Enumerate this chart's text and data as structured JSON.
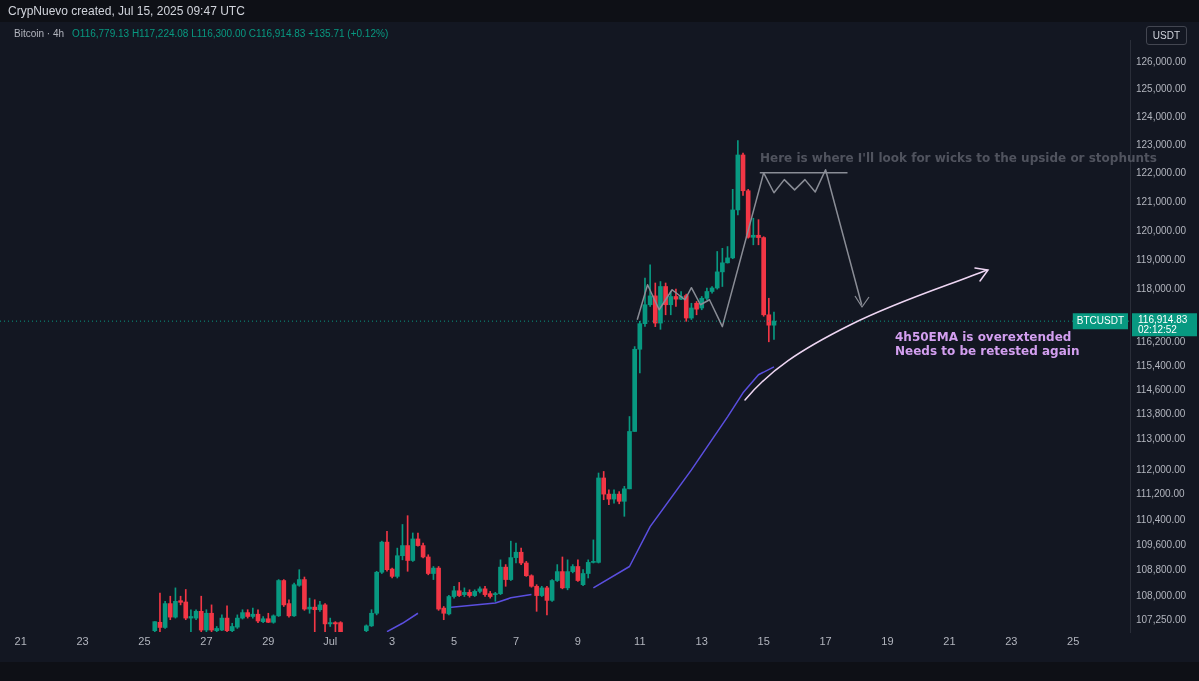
{
  "chart_data": {
    "type": "candlestick",
    "title": "Bitcoin · 4h",
    "subtitle": "O116,779.13 H117,224.08 L116,300.00 C116,914.83 +135.71 (+0.12%)",
    "ylabel": "USDT",
    "x": [
      "2025-06-25T08:00",
      "2025-06-25T12:00",
      "2025-06-25T16:00",
      "2025-06-25T20:00",
      "2025-06-26T00:00",
      "2025-06-26T04:00",
      "2025-06-26T08:00",
      "2025-06-26T12:00",
      "2025-06-26T16:00",
      "2025-06-26T20:00",
      "2025-06-27T00:00",
      "2025-06-27T04:00",
      "2025-06-27T08:00",
      "2025-06-27T12:00",
      "2025-06-27T16:00",
      "2025-06-27T20:00",
      "2025-06-28T00:00",
      "2025-06-28T04:00",
      "2025-06-28T08:00",
      "2025-06-28T12:00",
      "2025-06-28T16:00",
      "2025-06-28T20:00",
      "2025-06-29T00:00",
      "2025-06-29T04:00",
      "2025-06-29T08:00",
      "2025-06-29T12:00",
      "2025-06-29T16:00",
      "2025-06-29T20:00",
      "2025-06-30T00:00",
      "2025-06-30T04:00",
      "2025-06-30T08:00",
      "2025-06-30T12:00",
      "2025-06-30T16:00",
      "2025-06-30T20:00",
      "2025-07-01T00:00",
      "2025-07-01T04:00",
      "2025-07-01T08:00",
      "2025-07-02T04:00",
      "2025-07-02T08:00",
      "2025-07-02T12:00",
      "2025-07-02T16:00",
      "2025-07-02T20:00",
      "2025-07-03T00:00",
      "2025-07-03T04:00",
      "2025-07-03T08:00",
      "2025-07-03T12:00",
      "2025-07-03T16:00",
      "2025-07-03T20:00",
      "2025-07-04T00:00",
      "2025-07-04T04:00",
      "2025-07-04T08:00",
      "2025-07-04T12:00",
      "2025-07-04T16:00",
      "2025-07-04T20:00",
      "2025-07-05T00:00",
      "2025-07-05T04:00",
      "2025-07-05T08:00",
      "2025-07-05T12:00",
      "2025-07-05T16:00",
      "2025-07-05T20:00",
      "2025-07-06T00:00",
      "2025-07-06T04:00",
      "2025-07-06T08:00",
      "2025-07-06T12:00",
      "2025-07-06T16:00",
      "2025-07-06T20:00",
      "2025-07-07T00:00",
      "2025-07-07T04:00",
      "2025-07-07T08:00",
      "2025-07-07T12:00",
      "2025-07-07T16:00",
      "2025-07-07T20:00",
      "2025-07-08T00:00",
      "2025-07-08T04:00",
      "2025-07-08T08:00",
      "2025-07-08T12:00",
      "2025-07-08T16:00",
      "2025-07-08T20:00",
      "2025-07-09T00:00",
      "2025-07-09T04:00",
      "2025-07-09T08:00",
      "2025-07-09T12:00",
      "2025-07-09T16:00",
      "2025-07-09T20:00",
      "2025-07-10T00:00",
      "2025-07-10T04:00",
      "2025-07-10T08:00",
      "2025-07-10T12:00",
      "2025-07-10T16:00",
      "2025-07-10T20:00",
      "2025-07-11T00:00",
      "2025-07-11T04:00",
      "2025-07-11T08:00",
      "2025-07-11T12:00",
      "2025-07-11T16:00",
      "2025-07-11T20:00",
      "2025-07-12T00:00",
      "2025-07-12T04:00",
      "2025-07-12T08:00",
      "2025-07-12T12:00",
      "2025-07-12T16:00",
      "2025-07-12T20:00",
      "2025-07-13T00:00",
      "2025-07-13T04:00",
      "2025-07-13T08:00",
      "2025-07-13T12:00",
      "2025-07-13T16:00",
      "2025-07-13T20:00",
      "2025-07-14T00:00",
      "2025-07-14T04:00",
      "2025-07-14T08:00",
      "2025-07-14T12:00",
      "2025-07-14T16:00",
      "2025-07-14T20:00",
      "2025-07-15T00:00",
      "2025-07-15T04:00",
      "2025-07-15T08:00"
    ],
    "ohlc": [
      [
        106920,
        107200,
        106890,
        107200
      ],
      [
        107180,
        108090,
        106890,
        107020
      ],
      [
        107020,
        107830,
        106990,
        107760
      ],
      [
        107760,
        107990,
        107260,
        107340
      ],
      [
        107340,
        108250,
        107310,
        107830
      ],
      [
        107850,
        107990,
        107720,
        107800
      ],
      [
        107810,
        108200,
        107260,
        107310
      ],
      [
        107310,
        107570,
        106890,
        107360
      ],
      [
        107310,
        107570,
        107260,
        107520
      ],
      [
        107520,
        107990,
        106890,
        106940
      ],
      [
        106940,
        107570,
        106890,
        107460
      ],
      [
        107460,
        107720,
        106890,
        106940
      ],
      [
        106920,
        107050,
        106890,
        106990
      ],
      [
        106940,
        107410,
        106920,
        107310
      ],
      [
        107310,
        107690,
        106890,
        106920
      ],
      [
        106920,
        107150,
        106890,
        107050
      ],
      [
        107030,
        107410,
        106990,
        107310
      ],
      [
        107310,
        107570,
        107280,
        107480
      ],
      [
        107480,
        107570,
        107310,
        107360
      ],
      [
        107360,
        107620,
        107310,
        107430
      ],
      [
        107430,
        107570,
        107170,
        107220
      ],
      [
        107200,
        107360,
        107170,
        107290
      ],
      [
        107290,
        107460,
        107170,
        107180
      ],
      [
        107180,
        107410,
        107150,
        107380
      ],
      [
        107380,
        108510,
        107360,
        108480
      ],
      [
        108480,
        108510,
        107670,
        107720
      ],
      [
        107760,
        107880,
        107340,
        107380
      ],
      [
        107380,
        108400,
        107360,
        108350
      ],
      [
        108330,
        108820,
        108300,
        108510
      ],
      [
        108510,
        108590,
        107550,
        107590
      ],
      [
        107590,
        107930,
        107460,
        107650
      ],
      [
        107650,
        107880,
        106890,
        107570
      ],
      [
        107570,
        107830,
        107520,
        107720
      ],
      [
        107720,
        107760,
        106890,
        107130
      ],
      [
        107130,
        107310,
        107050,
        107170
      ],
      [
        107170,
        107200,
        106890,
        107130
      ],
      [
        107170,
        107200,
        106890,
        106890
      ],
      [
        106920,
        107100,
        106890,
        107070
      ],
      [
        107070,
        107570,
        107050,
        107460
      ],
      [
        107460,
        108770,
        107410,
        108740
      ],
      [
        108740,
        109720,
        108700,
        109690
      ],
      [
        109690,
        110030,
        108770,
        108820
      ],
      [
        108840,
        108870,
        108560,
        108610
      ],
      [
        108610,
        109500,
        108560,
        109260
      ],
      [
        109260,
        110250,
        109130,
        109580
      ],
      [
        109580,
        110530,
        108770,
        109110
      ],
      [
        109110,
        109980,
        109080,
        109790
      ],
      [
        109790,
        109980,
        109560,
        109580
      ],
      [
        109580,
        109660,
        109190,
        109220
      ],
      [
        109220,
        109290,
        108660,
        108700
      ],
      [
        108700,
        108920,
        108510,
        108870
      ],
      [
        108870,
        108920,
        107550,
        107590
      ],
      [
        107620,
        107670,
        107260,
        107460
      ],
      [
        107440,
        108020,
        107410,
        107980
      ],
      [
        107980,
        108300,
        107930,
        108160
      ],
      [
        108160,
        108420,
        107980,
        108010
      ],
      [
        108040,
        108250,
        107980,
        108110
      ],
      [
        108110,
        108190,
        107960,
        108010
      ],
      [
        108010,
        108190,
        107980,
        108140
      ],
      [
        108140,
        108280,
        108090,
        108220
      ],
      [
        108220,
        108300,
        107980,
        108040
      ],
      [
        108070,
        108140,
        107930,
        107980
      ],
      [
        108040,
        108110,
        107830,
        108070
      ],
      [
        108070,
        109130,
        108040,
        108900
      ],
      [
        108900,
        108980,
        108300,
        108510
      ],
      [
        108510,
        109720,
        108480,
        109200
      ],
      [
        109200,
        109660,
        109030,
        109370
      ],
      [
        109370,
        109500,
        108980,
        109030
      ],
      [
        109030,
        109080,
        108610,
        108630
      ],
      [
        108630,
        108660,
        108270,
        108300
      ],
      [
        108300,
        108350,
        107520,
        108010
      ],
      [
        108010,
        108300,
        107980,
        108250
      ],
      [
        108250,
        108300,
        107410,
        107860
      ],
      [
        107860,
        108510,
        107830,
        108480
      ],
      [
        108480,
        108980,
        108450,
        108760
      ],
      [
        108760,
        109220,
        108220,
        108250
      ],
      [
        108250,
        109130,
        108190,
        108760
      ],
      [
        108760,
        108980,
        108720,
        108920
      ],
      [
        108920,
        109130,
        108450,
        108480
      ],
      [
        108350,
        108820,
        108320,
        108700
      ],
      [
        108700,
        109130,
        108560,
        109050
      ],
      [
        109050,
        109760,
        109030,
        109080
      ],
      [
        109050,
        111900,
        109030,
        111740
      ],
      [
        111740,
        111950,
        111040,
        111220
      ],
      [
        111220,
        111360,
        110880,
        111060
      ],
      [
        111060,
        111360,
        110930,
        111220
      ],
      [
        111220,
        111300,
        110910,
        110990
      ],
      [
        110990,
        111470,
        110510,
        111390
      ],
      [
        111390,
        113740,
        111390,
        113250
      ],
      [
        113250,
        116060,
        113250,
        115970
      ],
      [
        115970,
        116910,
        115180,
        116830
      ],
      [
        116830,
        118380,
        116740,
        117470
      ],
      [
        117470,
        118830,
        117410,
        117770
      ],
      [
        117770,
        118210,
        116730,
        116850
      ],
      [
        116850,
        118260,
        116640,
        118090
      ],
      [
        118090,
        118210,
        117130,
        117470
      ],
      [
        117470,
        117920,
        117130,
        117750
      ],
      [
        117750,
        118000,
        117410,
        117660
      ],
      [
        117660,
        117920,
        117640,
        117750
      ],
      [
        117780,
        117830,
        116910,
        117020
      ],
      [
        117020,
        117520,
        116970,
        117360
      ],
      [
        117520,
        117580,
        117130,
        117320
      ],
      [
        117360,
        117750,
        117300,
        117690
      ],
      [
        117690,
        118040,
        117640,
        117920
      ],
      [
        117920,
        118090,
        117860,
        118040
      ],
      [
        118040,
        119290,
        118000,
        118590
      ],
      [
        118590,
        119400,
        118090,
        118900
      ],
      [
        118900,
        119460,
        118890,
        119070
      ],
      [
        119070,
        121450,
        119040,
        120730
      ],
      [
        120730,
        123170,
        120560,
        122660
      ],
      [
        122660,
        122730,
        121240,
        121400
      ],
      [
        121400,
        121450,
        119750,
        119780
      ],
      [
        119780,
        120440,
        119520,
        119850
      ],
      [
        119850,
        120390,
        119520,
        119770
      ],
      [
        119770,
        119800,
        117080,
        117130
      ],
      [
        117130,
        117690,
        116220,
        116779.13
      ],
      [
        116779.13,
        117224.08,
        116300,
        116914.83
      ]
    ],
    "series": [
      {
        "type": "line",
        "color": "#5b4fe0",
        "x": [
          "2025-07-02T20:00",
          "2025-07-03T08:00",
          "2025-07-03T20:00",
          "2025-07-04T12:00",
          "2025-07-04T20:00",
          "2025-07-06T08:00",
          "2025-07-06T20:00",
          "2025-07-07T12:00",
          "2025-07-08T00:00",
          "2025-07-09T12:00",
          "2025-07-10T16:00",
          "2025-07-11T08:00",
          "2025-07-12T16:00",
          "2025-07-13T20:00",
          "2025-07-14T08:00",
          "2025-07-14T20:00",
          "2025-07-15T08:00"
        ],
        "values": [
          106890,
          107150,
          107460,
          null,
          107640,
          107780,
          107940,
          108040,
          null,
          108250,
          108920,
          110180,
          112000,
          113730,
          114520,
          115120,
          115380
        ]
      },
      {
        "type": "line",
        "color": "#8a8d96",
        "x": [
          "2025-07-10T22:00",
          "2025-07-11T06:00",
          "2025-07-11T15:00",
          "2025-07-12T01:00",
          "2025-07-12T11:00",
          "2025-07-12T16:00",
          "2025-07-12T23:00",
          "2025-07-13T06:00",
          "2025-07-13T16:00",
          "2025-07-15T00:00",
          "2025-07-15T08:00",
          "2025-07-15T16:00",
          "2025-07-16T00:00",
          "2025-07-16T08:00",
          "2025-07-16T16:00",
          "2025-07-17T00:00",
          "2025-07-18T04:00"
        ],
        "values": [
          116960,
          118150,
          117300,
          117980,
          117640,
          118050,
          117470,
          117640,
          116730,
          122030,
          121330,
          121790,
          121430,
          121790,
          121360,
          122140,
          117470
        ]
      },
      {
        "type": "line",
        "color": "#8a8d96",
        "x": [
          "2025-07-14T21:00",
          "2025-07-17T17:00"
        ],
        "values": [
          122030,
          122030
        ]
      }
    ],
    "xlim": [
      "2025-06-20T08:00",
      "2025-07-26T20:00"
    ],
    "xticks": [
      {
        "value": "2025-06-21",
        "label": "21"
      },
      {
        "value": "2025-06-23",
        "label": "23"
      },
      {
        "value": "2025-06-25",
        "label": "25"
      },
      {
        "value": "2025-06-27",
        "label": "27"
      },
      {
        "value": "2025-06-29",
        "label": "29"
      },
      {
        "value": "2025-07-01",
        "label": "Jul"
      },
      {
        "value": "2025-07-03",
        "label": "3"
      },
      {
        "value": "2025-07-05",
        "label": "5"
      },
      {
        "value": "2025-07-07",
        "label": "7"
      },
      {
        "value": "2025-07-09",
        "label": "9"
      },
      {
        "value": "2025-07-11",
        "label": "11"
      },
      {
        "value": "2025-07-13",
        "label": "13"
      },
      {
        "value": "2025-07-15",
        "label": "15"
      },
      {
        "value": "2025-07-17",
        "label": "17"
      },
      {
        "value": "2025-07-19",
        "label": "19"
      },
      {
        "value": "2025-07-21",
        "label": "21"
      },
      {
        "value": "2025-07-23",
        "label": "23"
      },
      {
        "value": "2025-07-25",
        "label": "25"
      }
    ],
    "ylim": [
      106880,
      126800
    ],
    "yticks": [
      {
        "value": 107250,
        "label": "107,250.00"
      },
      {
        "value": 108000,
        "label": "108,000.00"
      },
      {
        "value": 108800,
        "label": "108,800.00"
      },
      {
        "value": 109600,
        "label": "109,600.00"
      },
      {
        "value": 110400,
        "label": "110,400.00"
      },
      {
        "value": 111200,
        "label": "111,200.00"
      },
      {
        "value": 112000,
        "label": "112,000.00"
      },
      {
        "value": 113000,
        "label": "113,000.00"
      },
      {
        "value": 113800,
        "label": "113,800.00"
      },
      {
        "value": 114600,
        "label": "114,600.00"
      },
      {
        "value": 115400,
        "label": "115,400.00"
      },
      {
        "value": 116200,
        "label": "116,200.00"
      },
      {
        "value": 118000,
        "label": "118,000.00"
      },
      {
        "value": 119000,
        "label": "119,000.00"
      },
      {
        "value": 120000,
        "label": "120,000.00"
      },
      {
        "value": 121000,
        "label": "121,000.00"
      },
      {
        "value": 122000,
        "label": "122,000.00"
      },
      {
        "value": 123000,
        "label": "123,000.00"
      },
      {
        "value": 124000,
        "label": "124,000.00"
      },
      {
        "value": 125000,
        "label": "125,000.00"
      },
      {
        "value": 126000,
        "label": "126,000.00"
      }
    ],
    "log": true,
    "ref_lines": [
      {
        "axis": "y",
        "value": 116914.83,
        "label": "BTCUSDT",
        "color": "#089981",
        "line_style": "dotted"
      }
    ],
    "annotations": [
      "CrypNuevo created, Jul 15, 2025 09:47 UTC",
      "02:12:52",
      "Here is where I'll look for wicks to the upside or stophunts",
      "4h50EMA is overextended\nNeeds to be retested again",
      "116,914.83"
    ]
  }
}
